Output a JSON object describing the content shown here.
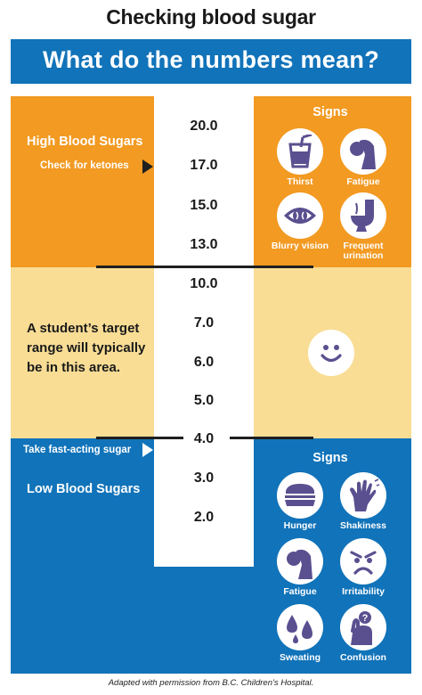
{
  "title": "Checking blood sugar",
  "subtitle": "What do the numbers mean?",
  "colors": {
    "high": "#f29a22",
    "target": "#f9dd95",
    "low": "#1173b9",
    "icon_purple": "#5a4f8f"
  },
  "scale": [
    "20.0",
    "17.0",
    "15.0",
    "13.0",
    "10.0",
    "7.0",
    "6.0",
    "5.0",
    "4.0",
    "3.0",
    "2.0"
  ],
  "high": {
    "title": "High Blood Sugars",
    "callout": "Check for ketones",
    "signs_title": "Signs",
    "signs": [
      {
        "label": "Thirst",
        "icon": "glass-icon"
      },
      {
        "label": "Fatigue",
        "icon": "tired-person-icon"
      },
      {
        "label": "Blurry vision",
        "icon": "eye-icon"
      },
      {
        "label": "Frequent urination",
        "icon": "toilet-icon"
      }
    ]
  },
  "target": {
    "text": "A student’s target range will typically be in this area.",
    "icon": "smiley-icon"
  },
  "low": {
    "title": "Low Blood Sugars",
    "callout": "Take fast-acting sugar",
    "signs_title": "Signs",
    "signs": [
      {
        "label": "Hunger",
        "icon": "sandwich-icon"
      },
      {
        "label": "Shakiness",
        "icon": "shaking-hand-icon"
      },
      {
        "label": "Fatigue",
        "icon": "tired-person-icon"
      },
      {
        "label": "Irritability",
        "icon": "angry-face-icon"
      },
      {
        "label": "Sweating",
        "icon": "sweat-drops-icon"
      },
      {
        "label": "Confusion",
        "icon": "confused-person-icon"
      }
    ]
  },
  "credit": "Adapted with permission from B.C. Children’s Hospital."
}
